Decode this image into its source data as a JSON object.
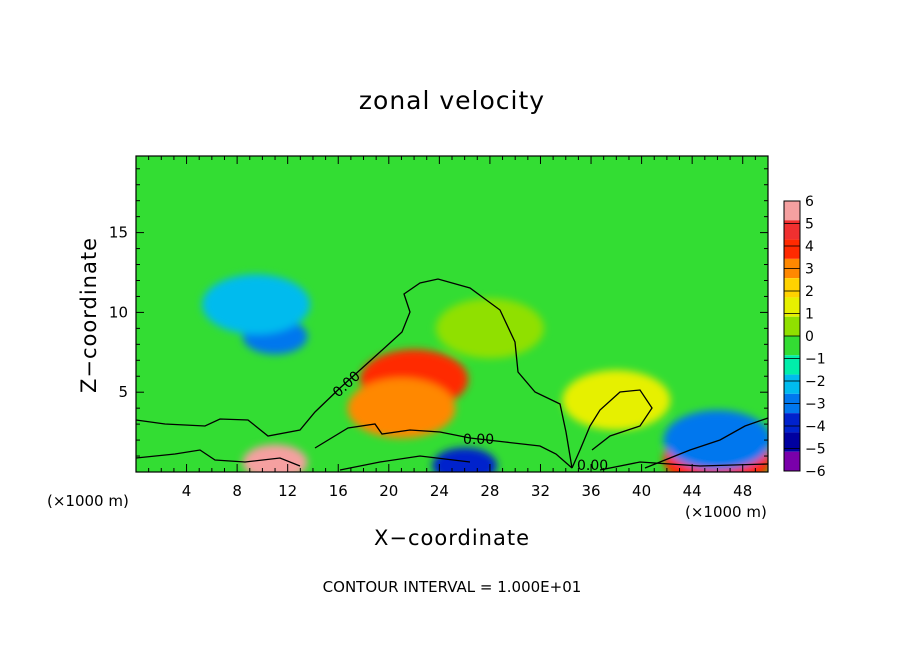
{
  "chart_data": {
    "type": "heatmap",
    "title": "zonal velocity",
    "xlabel": "X−coordinate",
    "ylabel": "Z−coordinate",
    "x_unit": "(×1000 m)",
    "y_unit": "(×1000 m)",
    "xlim": [
      0,
      50
    ],
    "ylim": [
      0,
      19.8
    ],
    "xticks": [
      4,
      8,
      12,
      16,
      20,
      24,
      28,
      32,
      36,
      40,
      44,
      48
    ],
    "yticks": [
      5,
      10,
      15
    ],
    "contour_interval_text": "CONTOUR INTERVAL = 1.000E+01",
    "contour_label": "0.00",
    "colorbar": {
      "levels": [
        6,
        5,
        4,
        3,
        2,
        1,
        0,
        -1,
        -2,
        -3,
        -4,
        -5,
        -6
      ],
      "level_labels": [
        "6",
        "5",
        "4",
        "3",
        "2",
        "1",
        "0",
        "−1",
        "−2",
        "−3",
        "−4",
        "−5",
        "−6"
      ],
      "colors": [
        "#f5a0a0",
        "#f03030",
        "#ff2a00",
        "#ff8800",
        "#ffd200",
        "#e6f000",
        "#90e000",
        "#33dd33",
        "#00eeaa",
        "#00bbee",
        "#0077ee",
        "#0022cc",
        "#0000a0",
        "#7a00aa"
      ]
    },
    "background_value": -1,
    "features": [
      {
        "x": 11,
        "z": 8.5,
        "value": -4.5
      },
      {
        "x": 9.5,
        "z": 10.5,
        "value": -3
      },
      {
        "x": 22,
        "z": 5.8,
        "value": 3.5
      },
      {
        "x": 21,
        "z": 4,
        "value": 2.5
      },
      {
        "x": 11,
        "z": 0.6,
        "value": 5.5
      },
      {
        "x": 26,
        "z": 0.4,
        "value": -5
      },
      {
        "x": 46,
        "z": 0.8,
        "value": 4
      },
      {
        "x": 46,
        "z": 2,
        "value": -4
      },
      {
        "x": 38,
        "z": 4.5,
        "value": 0.5
      },
      {
        "x": 28,
        "z": 9,
        "value": 0
      }
    ]
  }
}
